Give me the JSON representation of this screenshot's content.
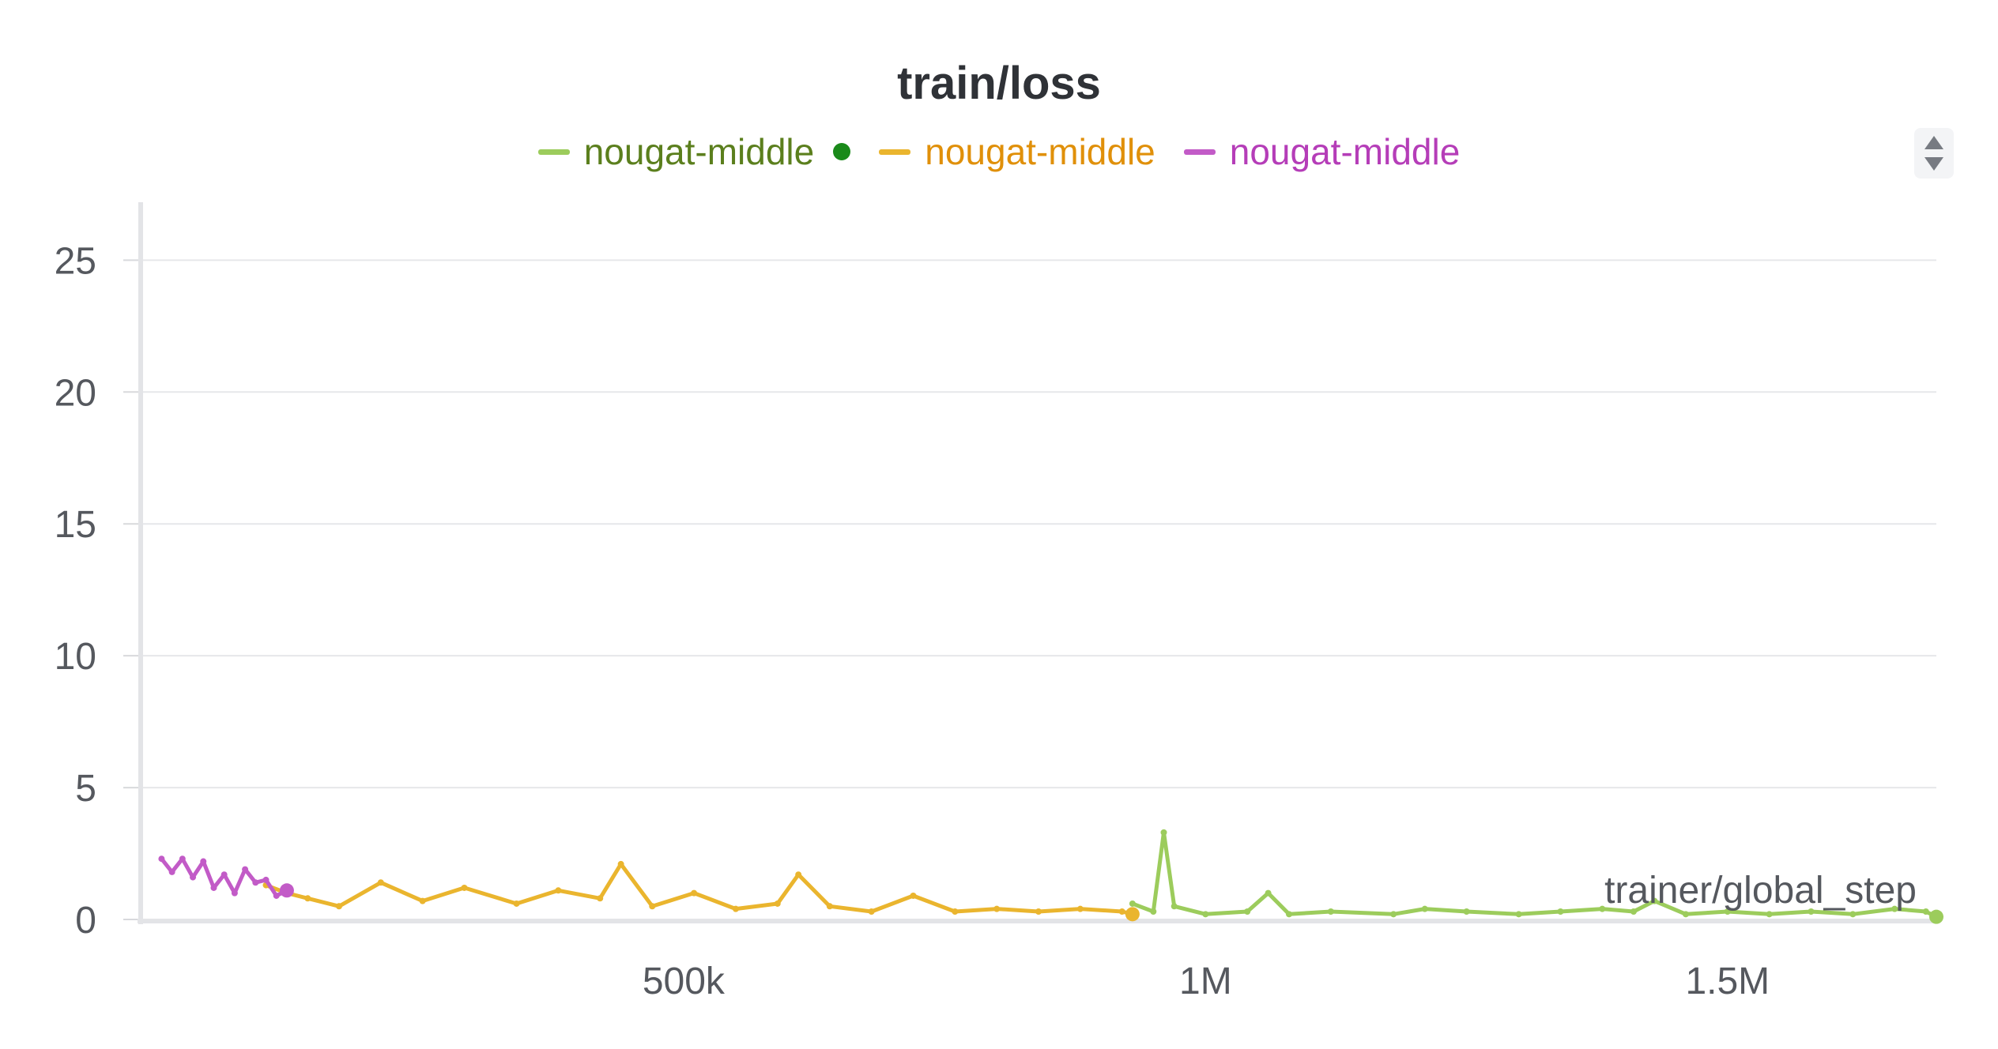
{
  "chart_data": {
    "type": "line",
    "title": "train/loss",
    "xlabel": "trainer/global_step",
    "ylabel": "",
    "xlim": [
      -20000,
      1700000
    ],
    "ylim": [
      0,
      26
    ],
    "x_ticks": [
      {
        "value": 500000,
        "label": "500k"
      },
      {
        "value": 1000000,
        "label": "1M"
      },
      {
        "value": 1500000,
        "label": "1.5M"
      }
    ],
    "y_ticks": [
      {
        "value": 0,
        "label": "0"
      },
      {
        "value": 5,
        "label": "5"
      },
      {
        "value": 10,
        "label": "10"
      },
      {
        "value": 15,
        "label": "15"
      },
      {
        "value": 20,
        "label": "20"
      },
      {
        "value": 25,
        "label": "25"
      }
    ],
    "grid": true,
    "legend_position": "top-center",
    "series": [
      {
        "name": "nougat-middle",
        "color": "#9ccc5c",
        "text_color": "#5b7f1d",
        "status_dot": "#1a8a1a",
        "x": [
          930000,
          950000,
          960000,
          970000,
          1000000,
          1040000,
          1060000,
          1080000,
          1120000,
          1180000,
          1210000,
          1250000,
          1300000,
          1340000,
          1380000,
          1410000,
          1430000,
          1460000,
          1500000,
          1540000,
          1580000,
          1620000,
          1660000,
          1690000,
          1700000
        ],
        "y": [
          0.6,
          0.3,
          3.3,
          0.5,
          0.2,
          0.3,
          1.0,
          0.2,
          0.3,
          0.2,
          0.4,
          0.3,
          0.2,
          0.3,
          0.4,
          0.3,
          0.7,
          0.2,
          0.3,
          0.2,
          0.3,
          0.2,
          0.4,
          0.3,
          0.1
        ]
      },
      {
        "name": "nougat-middle",
        "color": "#eab52e",
        "text_color": "#e0900a",
        "x": [
          100000,
          120000,
          140000,
          170000,
          210000,
          250000,
          290000,
          340000,
          380000,
          420000,
          440000,
          470000,
          510000,
          550000,
          590000,
          610000,
          640000,
          680000,
          720000,
          760000,
          800000,
          840000,
          880000,
          920000,
          930000
        ],
        "y": [
          1.3,
          1.0,
          0.8,
          0.5,
          1.4,
          0.7,
          1.2,
          0.6,
          1.1,
          0.8,
          2.1,
          0.5,
          1.0,
          0.4,
          0.6,
          1.7,
          0.5,
          0.3,
          0.9,
          0.3,
          0.4,
          0.3,
          0.4,
          0.3,
          0.2
        ]
      },
      {
        "name": "nougat-middle",
        "color": "#c25bc7",
        "text_color": "#b53db8",
        "x": [
          0,
          10000,
          20000,
          30000,
          40000,
          50000,
          60000,
          70000,
          80000,
          90000,
          100000,
          110000,
          120000
        ],
        "y": [
          2.3,
          1.8,
          2.3,
          1.6,
          2.2,
          1.2,
          1.7,
          1.0,
          1.9,
          1.4,
          1.5,
          0.9,
          1.1
        ]
      }
    ]
  }
}
